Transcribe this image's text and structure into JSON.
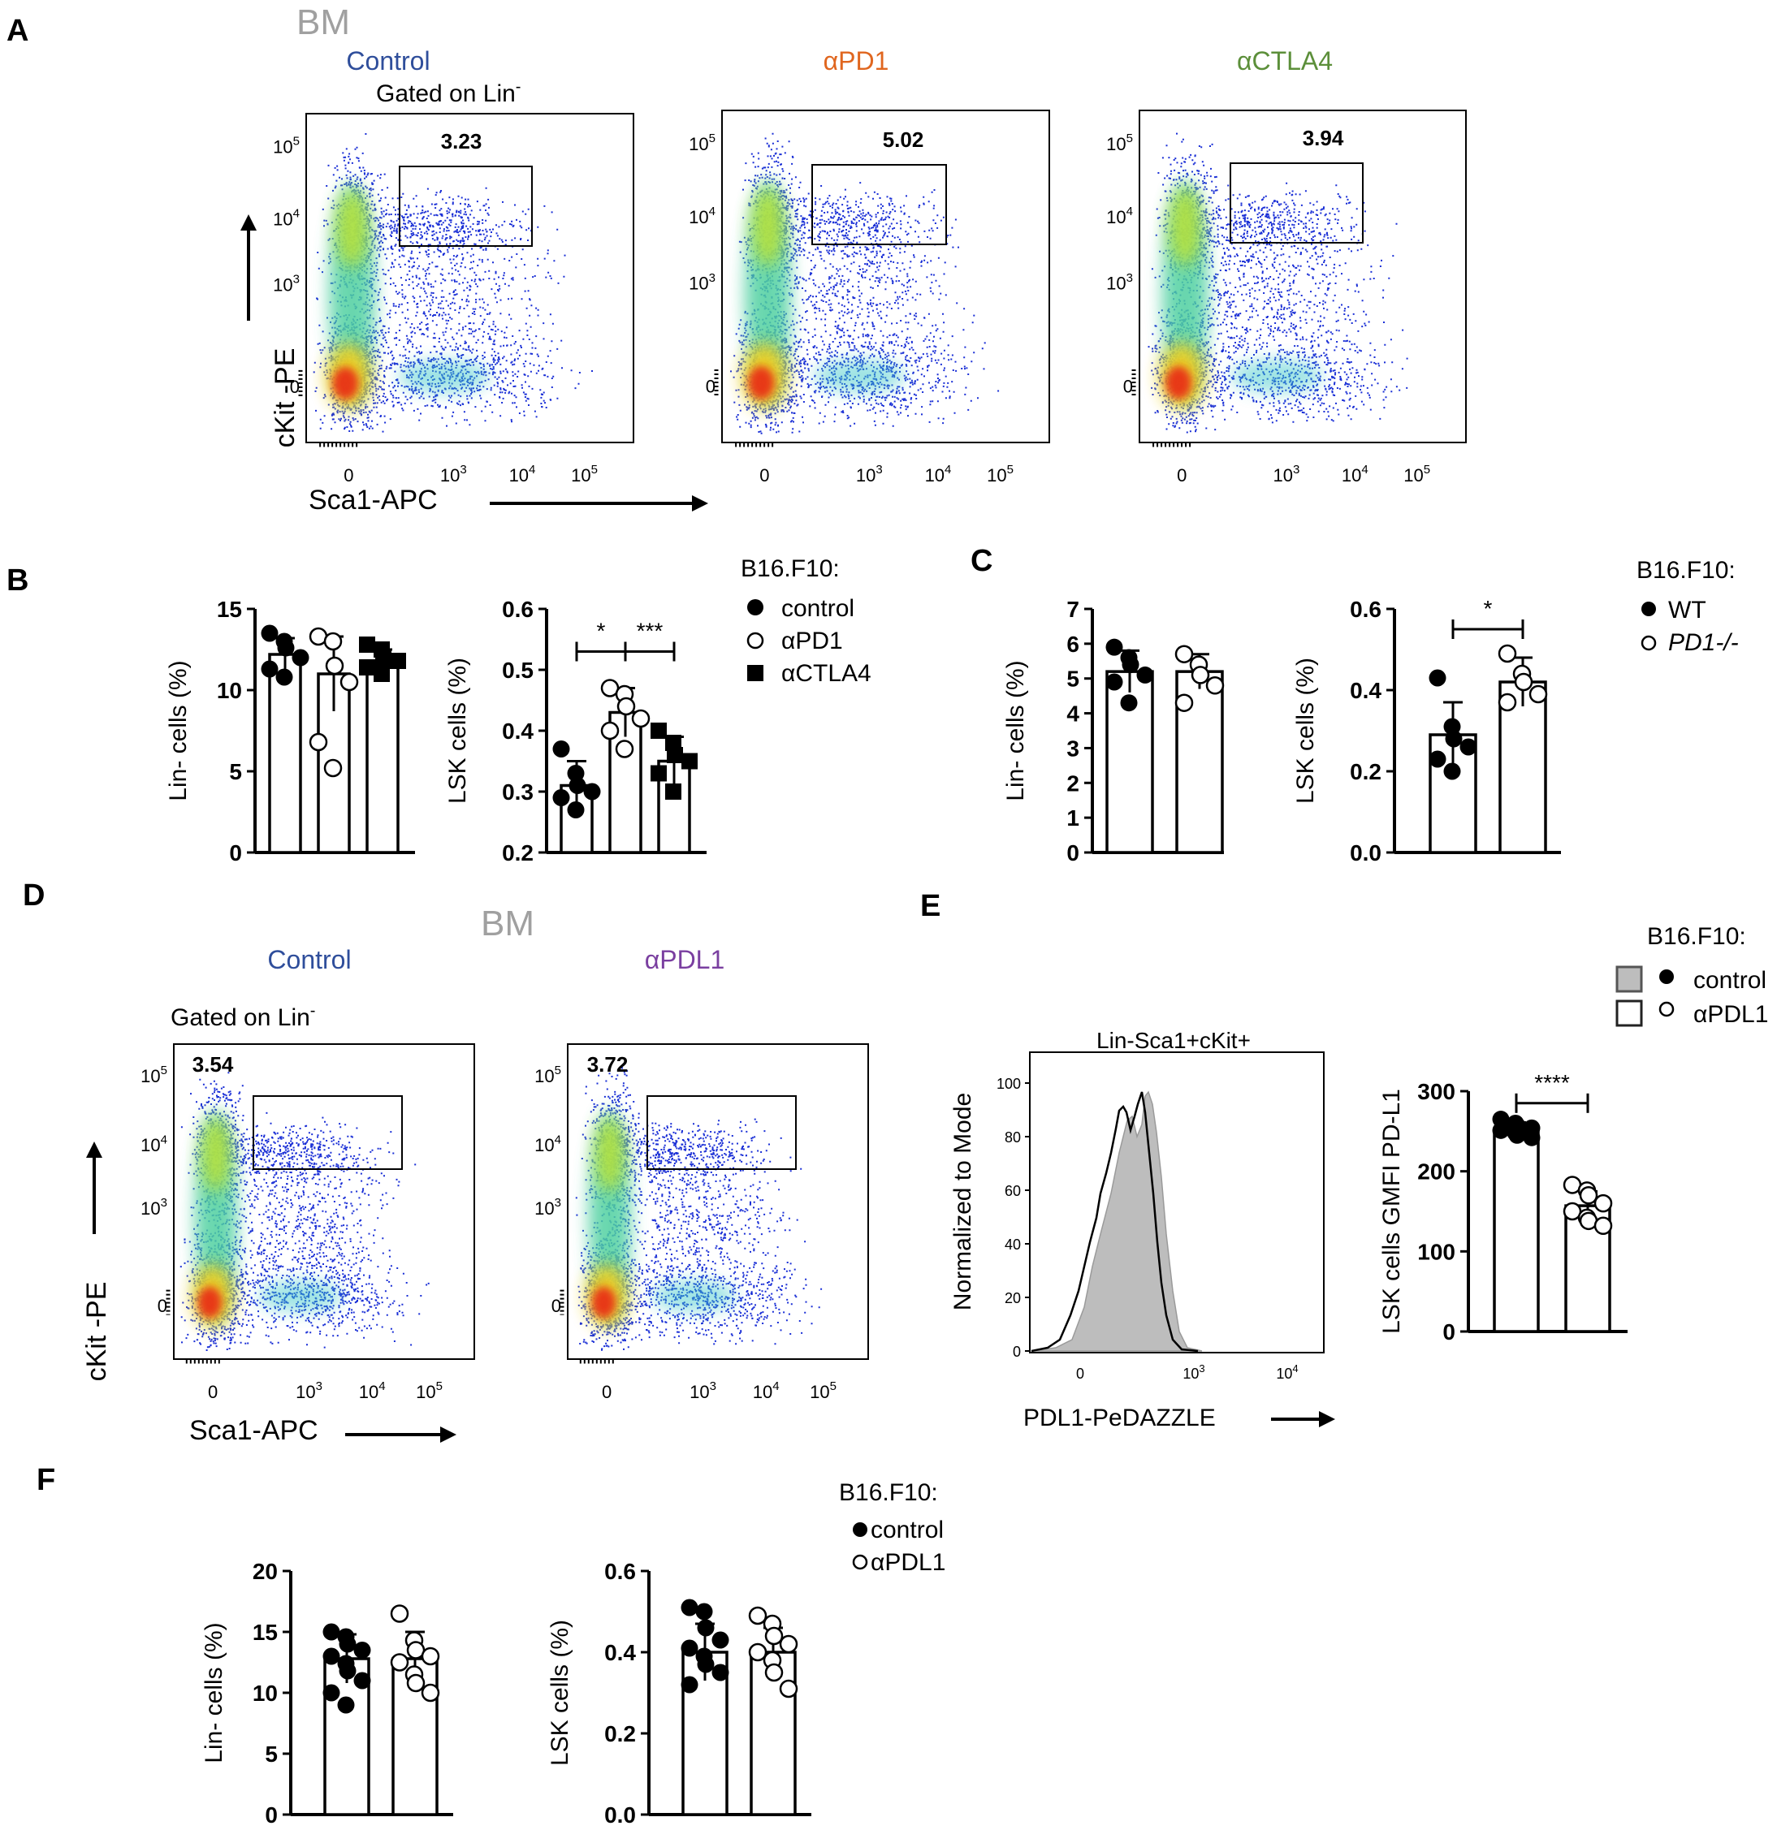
{
  "colors": {
    "control": "#2f4e9b",
    "apd1": "#e0661f",
    "actla4": "#5c8f3a",
    "apdl1": "#7a3fa0",
    "bm": "#a0a0a0",
    "hist_fill": "#bdbdbd"
  },
  "panel_a": {
    "letter": "A",
    "bm": "BM",
    "gated_prefix": "Gated on Lin",
    "gated_sup": "-",
    "x_label": "Sca1-APC",
    "y_label": "cKit -PE",
    "plots": [
      {
        "title": "Control",
        "gate_pct": "3.23",
        "color_key": "control"
      },
      {
        "title": "αPD1",
        "gate_pct": "5.02",
        "color_key": "apd1"
      },
      {
        "title": "αCTLA4",
        "gate_pct": "3.94",
        "color_key": "actla4"
      }
    ]
  },
  "panel_d": {
    "letter": "D",
    "bm": "BM",
    "gated_prefix": "Gated on Lin",
    "gated_sup": "-",
    "x_label": "Sca1-APC",
    "y_label": "cKit -PE",
    "plots": [
      {
        "title": "Control",
        "gate_pct": "3.54",
        "color_key": "control"
      },
      {
        "title": "αPDL1",
        "gate_pct": "3.72",
        "color_key": "apdl1"
      }
    ]
  },
  "flow_axis": {
    "x_ticks": [
      "0",
      "10^3",
      "10^4",
      "10^5"
    ],
    "y_ticks": [
      "0",
      "10^3",
      "10^4",
      "10^5"
    ]
  },
  "panel_b": {
    "letter": "B",
    "legend_title": "B16.F10:",
    "legend": [
      {
        "label": "control",
        "marker": "filled-circle"
      },
      {
        "label": "αPD1",
        "marker": "open-circle"
      },
      {
        "label": "αCTLA4",
        "marker": "filled-square"
      }
    ]
  },
  "panel_c": {
    "letter": "C",
    "legend_title": "B16.F10:",
    "legend": [
      {
        "label": "WT",
        "marker": "filled-circle"
      },
      {
        "label": "PD1-/-",
        "marker": "open-circle"
      }
    ]
  },
  "panel_e": {
    "letter": "E",
    "legend_title": "B16.F10:",
    "legend": [
      {
        "label": "control",
        "marker": "filled-circle",
        "swatch": "filled"
      },
      {
        "label": "αPDL1",
        "marker": "open-circle",
        "swatch": "open"
      }
    ],
    "hist_title": "Lin-Sca1+cKit+",
    "hist_x_label": "PDL1-PeDAZZLE",
    "hist_y_label": "Normalized to Mode",
    "hist_y_ticks": [
      "0",
      "20",
      "40",
      "60",
      "80",
      "100"
    ],
    "hist_x_ticks": [
      "0",
      "10^3",
      "10^4"
    ]
  },
  "panel_f": {
    "letter": "F",
    "legend_title": "B16.F10:",
    "legend": [
      {
        "label": "control",
        "marker": "filled-circle"
      },
      {
        "label": "αPDL1",
        "marker": "open-circle"
      }
    ]
  },
  "chart_data": [
    {
      "id": "B-lin",
      "type": "bar",
      "categories": [
        "control",
        "αPD1",
        "αCTLA4"
      ],
      "values": [
        12.2,
        11.0,
        11.8
      ],
      "errors": [
        1.0,
        2.3,
        0.7
      ],
      "markers": [
        "filled-circle",
        "open-circle",
        "filled-square"
      ],
      "points": [
        [
          13.5,
          13.0,
          12.6,
          12.0,
          11.3,
          10.8
        ],
        [
          13.3,
          13.0,
          11.5,
          10.5,
          6.8,
          5.2
        ],
        [
          12.8,
          12.5,
          12.0,
          11.8,
          11.4,
          11.0
        ]
      ],
      "ylabel": "Lin-  cells (%)",
      "ylim": [
        0,
        15
      ],
      "yticks": [
        "0",
        "5",
        "10",
        "15"
      ],
      "significance": []
    },
    {
      "id": "B-lsk",
      "type": "bar",
      "categories": [
        "control",
        "αPD1",
        "αCTLA4"
      ],
      "values": [
        0.31,
        0.43,
        0.35
      ],
      "errors": [
        0.04,
        0.04,
        0.04
      ],
      "markers": [
        "filled-circle",
        "open-circle",
        "filled-square"
      ],
      "points": [
        [
          0.37,
          0.33,
          0.31,
          0.3,
          0.29,
          0.27
        ],
        [
          0.47,
          0.46,
          0.44,
          0.42,
          0.4,
          0.37
        ],
        [
          0.4,
          0.38,
          0.36,
          0.35,
          0.33,
          0.3
        ]
      ],
      "ylabel": "LSK cells (%)",
      "ylim": [
        0.2,
        0.6
      ],
      "yticks": [
        "0.2",
        "0.3",
        "0.4",
        "0.5",
        "0.6"
      ],
      "significance": [
        {
          "from": 0,
          "to": 1,
          "y": 0.53,
          "label": "*"
        },
        {
          "from": 1,
          "to": 2,
          "y": 0.53,
          "label": "***"
        }
      ]
    },
    {
      "id": "C-lin",
      "type": "bar",
      "categories": [
        "WT",
        "PD1-/-"
      ],
      "values": [
        5.2,
        5.2
      ],
      "errors": [
        0.6,
        0.5
      ],
      "markers": [
        "filled-circle",
        "open-circle"
      ],
      "points": [
        [
          5.9,
          5.6,
          5.4,
          5.1,
          4.9,
          4.3
        ],
        [
          5.7,
          5.4,
          5.1,
          4.8,
          4.3
        ]
      ],
      "ylabel": "Lin-  cells (%)",
      "ylim": [
        0,
        7
      ],
      "yticks": [
        "0",
        "1",
        "2",
        "3",
        "4",
        "5",
        "6",
        "7"
      ],
      "significance": []
    },
    {
      "id": "C-lsk",
      "type": "bar",
      "categories": [
        "WT",
        "PD1-/-"
      ],
      "values": [
        0.29,
        0.42
      ],
      "errors": [
        0.08,
        0.06
      ],
      "markers": [
        "filled-circle",
        "open-circle"
      ],
      "points": [
        [
          0.43,
          0.31,
          0.28,
          0.26,
          0.23,
          0.2
        ],
        [
          0.49,
          0.44,
          0.42,
          0.39,
          0.37
        ]
      ],
      "ylabel": "LSK cells (%)",
      "ylim": [
        0,
        0.6
      ],
      "yticks": [
        "0.0",
        "0.2",
        "0.4",
        "0.6"
      ],
      "significance": [
        {
          "from": 0,
          "to": 1,
          "y": 0.55,
          "label": "*"
        }
      ]
    },
    {
      "id": "E-gmfi",
      "type": "bar",
      "categories": [
        "control",
        "αPDL1"
      ],
      "values": [
        253,
        157
      ],
      "errors": [
        8,
        18
      ],
      "markers": [
        "filled-circle",
        "open-circle"
      ],
      "points": [
        [
          265,
          260,
          257,
          254,
          251,
          248,
          245,
          242
        ],
        [
          183,
          176,
          170,
          160,
          150,
          142,
          138,
          132
        ]
      ],
      "ylabel": "LSK cells GMFI PD-L1",
      "ylim": [
        0,
        300
      ],
      "yticks": [
        "0",
        "100",
        "200",
        "300"
      ],
      "significance": [
        {
          "from": 0,
          "to": 1,
          "y": 285,
          "label": "****"
        }
      ]
    },
    {
      "id": "F-lin",
      "type": "bar",
      "categories": [
        "control",
        "αPDL1"
      ],
      "values": [
        12.8,
        12.8
      ],
      "errors": [
        2.0,
        2.2
      ],
      "markers": [
        "filled-circle",
        "open-circle"
      ],
      "points": [
        [
          15.0,
          14.6,
          14.0,
          13.5,
          13.0,
          12.4,
          11.8,
          11.0,
          10.0,
          9.0
        ],
        [
          16.5,
          14.3,
          13.5,
          13.0,
          12.5,
          11.5,
          10.8,
          10.0
        ]
      ],
      "ylabel": "Lin-  cells (%)",
      "ylim": [
        0,
        20
      ],
      "yticks": [
        "0",
        "5",
        "10",
        "15",
        "20"
      ],
      "significance": []
    },
    {
      "id": "F-lsk",
      "type": "bar",
      "categories": [
        "control",
        "αPDL1"
      ],
      "values": [
        0.4,
        0.4
      ],
      "errors": [
        0.07,
        0.06
      ],
      "markers": [
        "filled-circle",
        "open-circle"
      ],
      "points": [
        [
          0.51,
          0.5,
          0.46,
          0.43,
          0.41,
          0.39,
          0.37,
          0.35,
          0.32
        ],
        [
          0.49,
          0.47,
          0.44,
          0.42,
          0.4,
          0.38,
          0.35,
          0.31
        ]
      ],
      "ylabel": "LSK cells (%)",
      "ylim": [
        0,
        0.6
      ],
      "yticks": [
        "0.0",
        "0.2",
        "0.4",
        "0.6"
      ],
      "significance": []
    }
  ]
}
